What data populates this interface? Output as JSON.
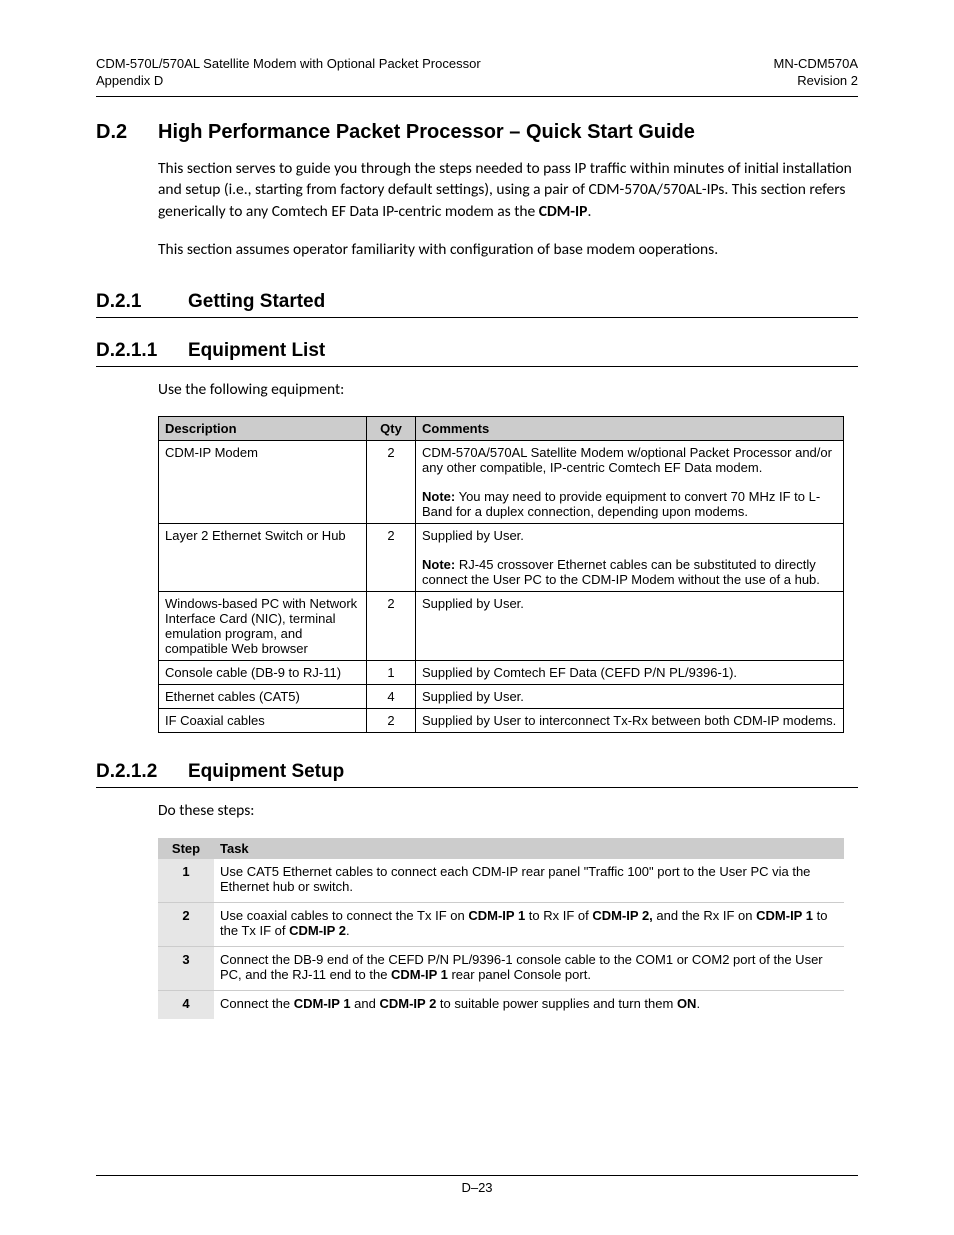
{
  "header": {
    "left_line1": "CDM-570L/570AL Satellite Modem with Optional Packet Processor",
    "left_line2": "Appendix D",
    "right_line1": "MN-CDM570A",
    "right_line2": "Revision 2"
  },
  "sections": {
    "d2": {
      "num": "D.2",
      "title": "High Performance Packet Processor – Quick Start Guide",
      "para1_a": "This section serves to guide you through the steps needed to pass IP traffic within minutes of initial installation and setup (i.e., starting from factory default settings), using a pair of CDM-570A/570AL-IPs.  This section refers generically to any Comtech EF Data IP-centric modem as the ",
      "para1_bold": "CDM-IP",
      "para1_b": ".",
      "para2": "This section assumes operator familiarity with configuration of base modem ooperations."
    },
    "d21": {
      "num": "D.2.1",
      "title": "Getting Started"
    },
    "d211": {
      "num": "D.2.1.1",
      "title": "Equipment List",
      "intro": "Use the following equipment:"
    },
    "d212": {
      "num": "D.2.1.2",
      "title": "Equipment Setup",
      "intro": "Do these steps:"
    }
  },
  "equip_table": {
    "headers": {
      "desc": "Description",
      "qty": "Qty",
      "comments": "Comments"
    },
    "rows": [
      {
        "desc": "CDM-IP Modem",
        "qty": "2",
        "comment_main": "CDM-570A/570AL Satellite Modem w/optional  Packet Processor and/or any other compatible, IP-centric Comtech EF Data modem.",
        "note_label": "Note:",
        "note_text": " You may need to provide equipment to convert 70 MHz IF to L-Band for a duplex connection, depending upon modems."
      },
      {
        "desc": "Layer 2 Ethernet Switch or Hub",
        "qty": "2",
        "comment_main": "Supplied by User.",
        "note_label": "Note:",
        "note_text": " RJ-45 crossover Ethernet cables can be substituted to directly connect the User PC to the CDM-IP Modem without the use of a hub."
      },
      {
        "desc": "Windows-based PC with Network Interface Card (NIC), terminal emulation program, and compatible Web browser",
        "qty": "2",
        "comment_main": "Supplied by User."
      },
      {
        "desc": "Console cable (DB-9 to RJ-11)",
        "qty": "1",
        "comment_main": "Supplied by Comtech EF Data (CEFD P/N PL/9396-1)."
      },
      {
        "desc": "Ethernet cables (CAT5)",
        "qty": "4",
        "comment_main": "Supplied by User."
      },
      {
        "desc": "IF Coaxial cables",
        "qty": "2",
        "comment_main": "Supplied by User to interconnect Tx-Rx between both CDM-IP modems."
      }
    ]
  },
  "steps_table": {
    "headers": {
      "step": "Step",
      "task": "Task"
    },
    "rows": [
      {
        "num": "1",
        "segs": [
          {
            "t": "Use CAT5 Ethernet cables to connect each CDM-IP rear panel \"Traffic 100\" port to the User PC via the Ethernet hub or switch."
          }
        ]
      },
      {
        "num": "2",
        "segs": [
          {
            "t": "Use coaxial cables to connect the Tx IF on "
          },
          {
            "t": "CDM-IP 1",
            "b": true
          },
          {
            "t": " to Rx IF of "
          },
          {
            "t": "CDM-IP 2,",
            "b": true
          },
          {
            "t": " and the Rx IF on "
          },
          {
            "t": "CDM-IP 1",
            "b": true
          },
          {
            "t": " to the Tx IF of "
          },
          {
            "t": "CDM-IP 2",
            "b": true
          },
          {
            "t": "."
          }
        ]
      },
      {
        "num": "3",
        "segs": [
          {
            "t": "Connect the DB-9 end of the CEFD P/N PL/9396-1 console cable to the COM1 or COM2 port of the User PC, and the RJ-11 end to the "
          },
          {
            "t": "CDM-IP 1",
            "b": true
          },
          {
            "t": " rear panel Console port."
          }
        ]
      },
      {
        "num": "4",
        "segs": [
          {
            "t": "Connect the "
          },
          {
            "t": "CDM-IP 1",
            "b": true
          },
          {
            "t": " and "
          },
          {
            "t": "CDM-IP 2",
            "b": true
          },
          {
            "t": " to suitable power supplies and turn them "
          },
          {
            "t": "ON",
            "b": true
          },
          {
            "t": "."
          }
        ]
      }
    ]
  },
  "footer": {
    "page": "D–23"
  }
}
